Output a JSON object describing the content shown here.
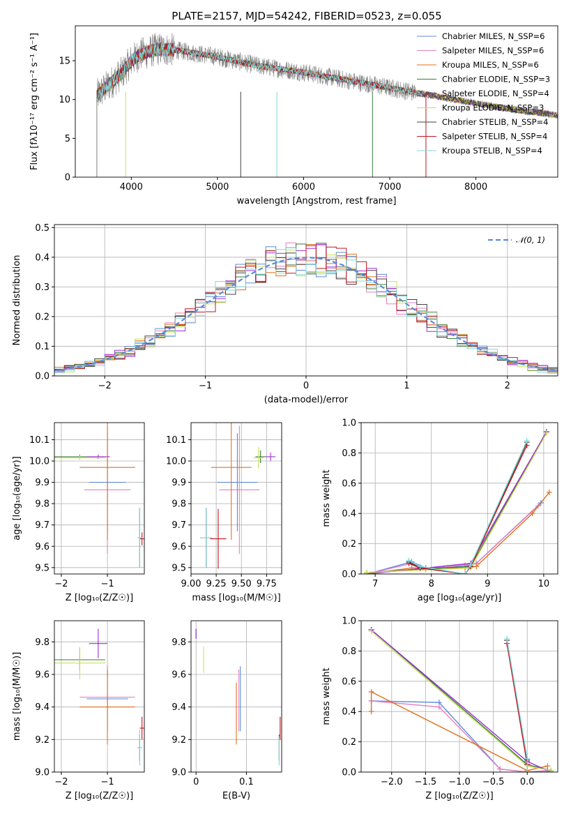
{
  "figure": {
    "title": "PLATE=2157, MJD=54242, FIBERID=0523, z=0.055"
  },
  "colors": {
    "Chabrier MILES": "#5b8bd9",
    "Salpeter MILES": "#e57fc0",
    "Kroupa MILES": "#e0701e",
    "Chabrier ELODIE": "#3a7a3a",
    "Salpeter ELODIE": "#9b2fd6",
    "Kroupa ELODIE": "#c9e05a",
    "Chabrier STELIB": "#404040",
    "Salpeter STELIB": "#c0151b",
    "Kroupa STELIB": "#7fd8dc",
    "data": "#808080",
    "normal": "#5b8bd9"
  },
  "chart_data": [
    {
      "type": "line",
      "xlabel": "wavelength [Angstrom, rest frame]",
      "ylabel": "Flux [fλ10⁻¹⁷ erg cm⁻² s⁻¹ A⁻¹]",
      "xlim": [
        3350,
        8950
      ],
      "ylim": [
        0,
        19.5
      ],
      "xticks": [
        4000,
        5000,
        6000,
        7000,
        8000
      ],
      "yticks": [
        0,
        5,
        10,
        15
      ],
      "grid": false,
      "legend_position": "top-right",
      "legend": [
        "Chabrier MILES, N_SSP=6",
        "Salpeter MILES, N_SSP=6",
        "Kroupa MILES, N_SSP=6",
        "Chabrier ELODIE, N_SSP=3",
        "Salpeter ELODIE, N_SSP=4",
        "Kroupa ELODIE, N_SSP=3",
        "Chabrier STELIB, N_SSP=4",
        "Salpeter STELIB, N_SSP=4",
        "Kroupa STELIB, N_SSP=4"
      ],
      "continuum": {
        "x": [
          3600,
          3700,
          3900,
          4000,
          4100,
          4300,
          4500,
          5000,
          5500,
          6000,
          6500,
          7000,
          7500,
          8000,
          8500,
          8950
        ],
        "y": [
          10.5,
          11.5,
          13.5,
          15.0,
          15.8,
          16.5,
          16.4,
          15.5,
          14.3,
          13.5,
          12.5,
          11.5,
          10.5,
          9.5,
          8.6,
          8.0
        ]
      }
    },
    {
      "type": "line",
      "xlabel": "(data-model)/error",
      "ylabel": "Normed distribution",
      "xlim": [
        -2.5,
        2.5
      ],
      "ylim": [
        0,
        0.51
      ],
      "xticks": [
        -2,
        -1,
        0,
        1,
        2
      ],
      "yticks": [
        0.0,
        0.1,
        0.2,
        0.3,
        0.4,
        0.5
      ],
      "grid": true,
      "legend_position": "top-right",
      "legend": [
        "𝒩(0, 1)"
      ],
      "normal": {
        "mean": 0,
        "sigma": 1
      }
    },
    {
      "type": "scatter",
      "xlabel": "Z [log₁₀(Z/Z☉)]",
      "ylabel": "age  [log₁₀(age/yr)]",
      "xlim": [
        -2.15,
        -0.2
      ],
      "ylim": [
        9.47,
        10.18
      ],
      "xticks": [
        -2,
        -1
      ],
      "yticks": [
        9.5,
        9.6,
        9.7,
        9.8,
        9.9,
        10.0,
        10.1
      ],
      "grid": true,
      "points": [
        {
          "model": "Chabrier MILES",
          "x": -1.0,
          "y": 9.9,
          "xerr": 0.4,
          "yerr": 0.23
        },
        {
          "model": "Salpeter MILES",
          "x": -1.0,
          "y": 9.865,
          "xerr": 0.5,
          "yerr": 0.3
        },
        {
          "model": "Kroupa MILES",
          "x": -1.0,
          "y": 9.97,
          "xerr": 0.6,
          "yerr": 0.34
        },
        {
          "model": "Chabrier ELODIE",
          "x": -1.6,
          "y": 10.02,
          "xerr": 0.55,
          "yerr": 0.01
        },
        {
          "model": "Salpeter ELODIE",
          "x": -1.2,
          "y": 10.02,
          "xerr": 0.25,
          "yerr": 0.01
        },
        {
          "model": "Kroupa ELODIE",
          "x": -1.6,
          "y": 10.015,
          "xerr": 0.55,
          "yerr": 0.01
        },
        {
          "model": "Chabrier STELIB",
          "x": -0.3,
          "y": 9.64,
          "xerr": 0.05,
          "yerr": 0.14
        },
        {
          "model": "Salpeter STELIB",
          "x": -0.25,
          "y": 9.635,
          "xerr": 0.05,
          "yerr": 0.03
        },
        {
          "model": "Kroupa STELIB",
          "x": -0.3,
          "y": 9.64,
          "xerr": 0.05,
          "yerr": 0.14
        }
      ]
    },
    {
      "type": "scatter",
      "xlabel": "mass [log₁₀(M/M☉)]",
      "ylabel": "",
      "xlim": [
        9.0,
        9.9
      ],
      "ylim": [
        9.47,
        10.18
      ],
      "xticks": [
        9.0,
        9.25,
        9.5,
        9.75
      ],
      "xticklabels": [
        "9.00",
        "9.25",
        "9.50",
        "9.75"
      ],
      "yticks": [
        9.5,
        9.6,
        9.7,
        9.8,
        9.9,
        10.0,
        10.1
      ],
      "grid": true,
      "points": [
        {
          "model": "Chabrier MILES",
          "x": 9.46,
          "y": 9.9,
          "xerr": 0.2,
          "yerr": 0.23
        },
        {
          "model": "Salpeter MILES",
          "x": 9.48,
          "y": 9.865,
          "xerr": 0.2,
          "yerr": 0.3
        },
        {
          "model": "Kroupa MILES",
          "x": 9.4,
          "y": 9.97,
          "xerr": 0.2,
          "yerr": 0.34
        },
        {
          "model": "Chabrier ELODIE",
          "x": 9.69,
          "y": 10.02,
          "xerr": 0.05,
          "yerr": 0.03
        },
        {
          "model": "Salpeter ELODIE",
          "x": 9.79,
          "y": 10.02,
          "xerr": 0.05,
          "yerr": 0.02
        },
        {
          "model": "Kroupa ELODIE",
          "x": 9.67,
          "y": 10.015,
          "xerr": 0.05,
          "yerr": 0.05
        },
        {
          "model": "Chabrier STELIB",
          "x": 9.15,
          "y": 9.64,
          "xerr": 0.06,
          "yerr": 0.14
        },
        {
          "model": "Salpeter STELIB",
          "x": 9.27,
          "y": 9.635,
          "xerr": 0.08,
          "yerr": 0.14
        },
        {
          "model": "Kroupa STELIB",
          "x": 9.15,
          "y": 9.64,
          "xerr": 0.06,
          "yerr": 0.14
        }
      ]
    },
    {
      "type": "line",
      "xlabel": "age  [log₁₀(age/yr)]",
      "ylabel": "mass weight",
      "xlim": [
        6.75,
        10.25
      ],
      "ylim": [
        0,
        1
      ],
      "xticks": [
        7,
        8,
        9,
        10
      ],
      "yticks": [
        0.0,
        0.2,
        0.4,
        0.6,
        0.8,
        1.0
      ],
      "grid": true,
      "series": [
        {
          "model": "Chabrier MILES",
          "x": [
            6.85,
            7.65,
            7.9,
            8.6,
            8.8,
            9.95
          ],
          "y": [
            0.0,
            0.08,
            0.04,
            0.05,
            0.07,
            0.47
          ]
        },
        {
          "model": "Salpeter MILES",
          "x": [
            6.85,
            7.65,
            7.9,
            8.6,
            8.8,
            9.9
          ],
          "y": [
            0.0,
            0.07,
            0.03,
            0.06,
            0.07,
            0.45
          ]
        },
        {
          "model": "Kroupa MILES",
          "x": [
            6.85,
            7.65,
            8.6,
            8.8,
            9.8,
            10.1
          ],
          "y": [
            0.0,
            0.04,
            0.04,
            0.05,
            0.4,
            0.54
          ]
        },
        {
          "model": "Chabrier ELODIE",
          "x": [
            6.85,
            8.7,
            10.05
          ],
          "y": [
            0.01,
            0.05,
            0.94
          ]
        },
        {
          "model": "Salpeter ELODIE",
          "x": [
            6.85,
            8.7,
            10.05
          ],
          "y": [
            0.0,
            0.07,
            0.94
          ]
        },
        {
          "model": "Kroupa ELODIE",
          "x": [
            6.85,
            8.7,
            10.05
          ],
          "y": [
            0.01,
            0.04,
            0.93
          ]
        },
        {
          "model": "Chabrier STELIB",
          "x": [
            7.6,
            7.8,
            8.6,
            8.7,
            9.7
          ],
          "y": [
            0.08,
            0.04,
            0.0,
            0.05,
            0.87
          ]
        },
        {
          "model": "Salpeter STELIB",
          "x": [
            7.6,
            7.8,
            8.6,
            8.7,
            9.7
          ],
          "y": [
            0.07,
            0.04,
            0.0,
            0.05,
            0.85
          ]
        },
        {
          "model": "Kroupa STELIB",
          "x": [
            7.6,
            7.8,
            8.6,
            8.7,
            9.7
          ],
          "y": [
            0.09,
            0.05,
            0.0,
            0.06,
            0.88
          ]
        }
      ]
    },
    {
      "type": "scatter",
      "xlabel": "Z [log₁₀(Z/Z☉)]",
      "ylabel": "mass [log₁₀(M/M☉)]",
      "xlim": [
        -2.15,
        -0.2
      ],
      "ylim": [
        9.0,
        9.93
      ],
      "xticks": [
        -2,
        -1
      ],
      "yticks": [
        9.0,
        9.2,
        9.4,
        9.6,
        9.8
      ],
      "grid": true,
      "points": [
        {
          "model": "Chabrier MILES",
          "x": -1.0,
          "y": 9.45,
          "xerr": 0.45,
          "yerr": 0.2
        },
        {
          "model": "Salpeter MILES",
          "x": -1.0,
          "y": 9.46,
          "xerr": 0.6,
          "yerr": 0.2
        },
        {
          "model": "Kroupa MILES",
          "x": -1.0,
          "y": 9.4,
          "xerr": 0.6,
          "yerr": 0.23
        },
        {
          "model": "Chabrier ELODIE",
          "x": -1.6,
          "y": 9.69,
          "xerr": 0.55,
          "yerr": 0.07
        },
        {
          "model": "Salpeter ELODIE",
          "x": -1.2,
          "y": 9.79,
          "xerr": 0.2,
          "yerr": 0.09
        },
        {
          "model": "Kroupa ELODIE",
          "x": -1.6,
          "y": 9.67,
          "xerr": 0.55,
          "yerr": 0.1
        },
        {
          "model": "Chabrier STELIB",
          "x": -0.3,
          "y": 9.15,
          "xerr": 0.05,
          "yerr": 0.08
        },
        {
          "model": "Salpeter STELIB",
          "x": -0.25,
          "y": 9.27,
          "xerr": 0.05,
          "yerr": 0.07
        },
        {
          "model": "Kroupa STELIB",
          "x": -0.3,
          "y": 9.15,
          "xerr": 0.05,
          "yerr": 0.11
        }
      ]
    },
    {
      "type": "scatter",
      "xlabel": "E(B-V)",
      "ylabel": "",
      "xlim": [
        -0.01,
        0.17
      ],
      "ylim": [
        9.0,
        9.93
      ],
      "xticks": [
        0.0,
        0.1
      ],
      "yticks": [
        9.0,
        9.2,
        9.4,
        9.6,
        9.8
      ],
      "grid": true,
      "points": [
        {
          "model": "Chabrier MILES",
          "x": 0.088,
          "y": 9.45,
          "yerr": 0.2
        },
        {
          "model": "Salpeter MILES",
          "x": 0.085,
          "y": 9.44,
          "yerr": 0.19
        },
        {
          "model": "Kroupa MILES",
          "x": 0.08,
          "y": 9.36,
          "yerr": 0.19
        },
        {
          "model": "Chabrier ELODIE",
          "x": 0.0,
          "y": 9.85,
          "yerr": 0.03
        },
        {
          "model": "Salpeter ELODIE",
          "x": 0.0,
          "y": 9.85,
          "yerr": 0.03
        },
        {
          "model": "Kroupa ELODIE",
          "x": 0.015,
          "y": 9.69,
          "yerr": 0.08
        },
        {
          "model": "Chabrier STELIB",
          "x": 0.165,
          "y": 9.15,
          "yerr": 0.08
        },
        {
          "model": "Salpeter STELIB",
          "x": 0.167,
          "y": 9.27,
          "yerr": 0.07
        },
        {
          "model": "Kroupa STELIB",
          "x": 0.165,
          "y": 9.13,
          "yerr": 0.09
        }
      ]
    },
    {
      "type": "line",
      "xlabel": "Z [log₁₀(Z/Z☉)]",
      "ylabel": "mass weight",
      "xlim": [
        -2.45,
        0.45
      ],
      "ylim": [
        0,
        1
      ],
      "xticks": [
        -2.0,
        -1.5,
        -1.0,
        -0.5,
        0.0
      ],
      "xticklabels": [
        "−2.0",
        "−1.5",
        "−1.0",
        "−0.5",
        "0.0"
      ],
      "yticks": [
        0.0,
        0.2,
        0.4,
        0.6,
        0.8,
        1.0
      ],
      "grid": true,
      "series": [
        {
          "model": "Chabrier MILES",
          "x": [
            -2.3,
            -1.3,
            -0.4,
            0.0,
            0.3
          ],
          "y": [
            0.47,
            0.46,
            0.02,
            0.0,
            0.01
          ]
        },
        {
          "model": "Salpeter MILES",
          "x": [
            -2.3,
            -1.3,
            -0.4,
            0.0,
            0.3
          ],
          "y": [
            0.47,
            0.43,
            0.02,
            0.0,
            0.01
          ]
        },
        {
          "model": "Kroupa MILES",
          "x": [
            -2.3,
            -2.3,
            0.0,
            0.3
          ],
          "y": [
            0.4,
            0.53,
            0.01,
            0.04
          ]
        },
        {
          "model": "Chabrier ELODIE",
          "x": [
            -2.3,
            0.0,
            0.35
          ],
          "y": [
            0.94,
            0.05,
            0.01
          ]
        },
        {
          "model": "Salpeter ELODIE",
          "x": [
            -2.3,
            0.0,
            0.35
          ],
          "y": [
            0.94,
            0.07,
            0.0
          ]
        },
        {
          "model": "Kroupa ELODIE",
          "x": [
            -2.3,
            0.0,
            0.35
          ],
          "y": [
            0.93,
            0.04,
            0.01
          ]
        },
        {
          "model": "Chabrier STELIB",
          "x": [
            -0.3,
            0.0,
            0.0,
            0.35
          ],
          "y": [
            0.87,
            0.08,
            0.0,
            0.0
          ]
        },
        {
          "model": "Salpeter STELIB",
          "x": [
            -0.3,
            0.0,
            0.0,
            0.35
          ],
          "y": [
            0.85,
            0.05,
            0.0,
            0.0
          ]
        },
        {
          "model": "Kroupa STELIB",
          "x": [
            -0.3,
            0.0,
            0.0,
            0.35
          ],
          "y": [
            0.88,
            0.09,
            0.0,
            0.0
          ]
        }
      ]
    }
  ]
}
